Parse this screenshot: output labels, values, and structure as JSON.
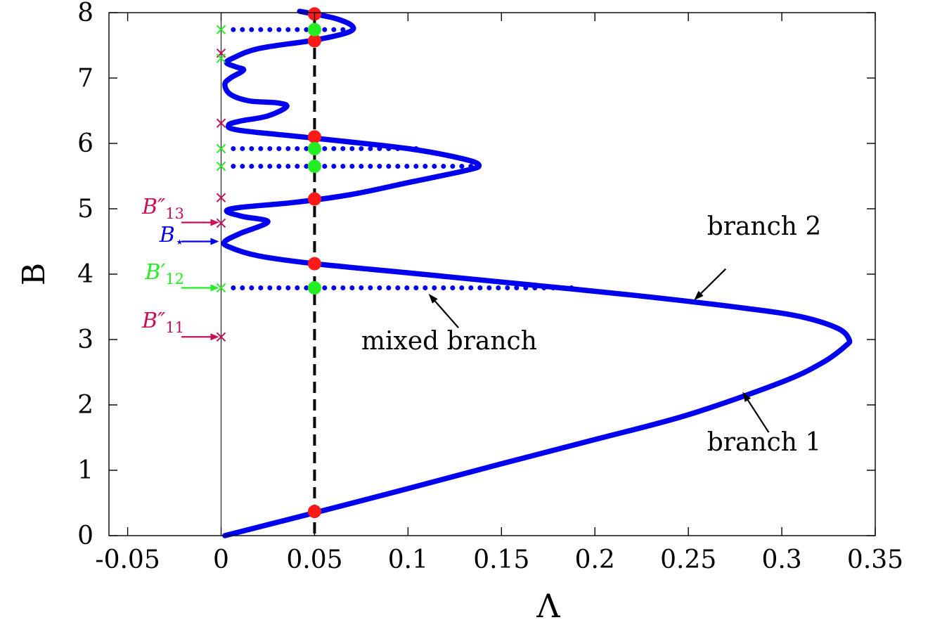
{
  "chart_data": {
    "type": "line",
    "xlabel": "Λ",
    "ylabel": "B",
    "xlim": [
      -0.06,
      0.35
    ],
    "ylim": [
      0,
      8
    ],
    "xticks": [
      {
        "v": -0.05,
        "label": "-0.05"
      },
      {
        "v": 0,
        "label": "0"
      },
      {
        "v": 0.05,
        "label": "0.05"
      },
      {
        "v": 0.1,
        "label": "0.1"
      },
      {
        "v": 0.15,
        "label": "0.15"
      },
      {
        "v": 0.2,
        "label": "0.2"
      },
      {
        "v": 0.25,
        "label": "0.25"
      },
      {
        "v": 0.3,
        "label": "0.3"
      },
      {
        "v": 0.35,
        "label": "0.35"
      }
    ],
    "yticks": [
      {
        "v": 0,
        "label": "0"
      },
      {
        "v": 1,
        "label": "1"
      },
      {
        "v": 2,
        "label": "2"
      },
      {
        "v": 3,
        "label": "3"
      },
      {
        "v": 4,
        "label": "4"
      },
      {
        "v": 5,
        "label": "5"
      },
      {
        "v": 6,
        "label": "6"
      },
      {
        "v": 7,
        "label": "7"
      },
      {
        "v": 8,
        "label": "8"
      }
    ],
    "grid": false,
    "main_curve": {
      "color": "#0000ee",
      "points": [
        [
          0.002,
          0.0
        ],
        [
          0.05,
          0.35
        ],
        [
          0.1,
          0.72
        ],
        [
          0.15,
          1.1
        ],
        [
          0.2,
          1.47
        ],
        [
          0.25,
          1.85
        ],
        [
          0.3,
          2.35
        ],
        [
          0.322,
          2.65
        ],
        [
          0.334,
          2.9
        ],
        [
          0.336,
          3.0
        ],
        [
          0.33,
          3.17
        ],
        [
          0.31,
          3.35
        ],
        [
          0.28,
          3.48
        ],
        [
          0.22,
          3.68
        ],
        [
          0.15,
          3.88
        ],
        [
          0.1,
          4.02
        ],
        [
          0.05,
          4.16
        ],
        [
          0.02,
          4.28
        ],
        [
          0.004,
          4.42
        ],
        [
          0.002,
          4.5
        ],
        [
          0.01,
          4.62
        ],
        [
          0.025,
          4.8
        ],
        [
          0.012,
          4.88
        ],
        [
          0.003,
          4.96
        ],
        [
          0.01,
          5.02
        ],
        [
          0.04,
          5.1
        ],
        [
          0.07,
          5.22
        ],
        [
          0.1,
          5.4
        ],
        [
          0.13,
          5.58
        ],
        [
          0.138,
          5.66
        ],
        [
          0.13,
          5.76
        ],
        [
          0.1,
          5.92
        ],
        [
          0.05,
          6.08
        ],
        [
          0.01,
          6.2
        ],
        [
          0.004,
          6.28
        ],
        [
          0.01,
          6.34
        ],
        [
          0.025,
          6.42
        ],
        [
          0.035,
          6.56
        ],
        [
          0.03,
          6.62
        ],
        [
          0.015,
          6.65
        ],
        [
          0.005,
          6.75
        ],
        [
          0.002,
          6.9
        ],
        [
          0.005,
          7.0
        ],
        [
          0.012,
          7.12
        ],
        [
          0.008,
          7.17
        ],
        [
          0.003,
          7.23
        ],
        [
          0.006,
          7.3
        ],
        [
          0.02,
          7.45
        ],
        [
          0.05,
          7.58
        ],
        [
          0.068,
          7.7
        ],
        [
          0.07,
          7.8
        ],
        [
          0.06,
          7.92
        ],
        [
          0.042,
          8.02
        ]
      ]
    },
    "mixed_branches": [
      {
        "y": 3.79,
        "x_start": 0.002,
        "x_end": 0.19
      },
      {
        "y": 5.65,
        "x_start": 0.002,
        "x_end": 0.137
      },
      {
        "y": 5.92,
        "x_start": 0.002,
        "x_end": 0.105
      },
      {
        "y": 7.74,
        "x_start": 0.002,
        "x_end": 0.066
      }
    ],
    "vertical_line": {
      "x": 0.05,
      "color": "#000000",
      "style": "dashed"
    },
    "red_points": {
      "x": 0.05,
      "color": "#ff1a1a",
      "y": [
        0.37,
        4.16,
        5.15,
        6.1,
        7.57,
        7.98
      ]
    },
    "green_points": {
      "x": 0.05,
      "color": "#22ee22",
      "y": [
        3.79,
        5.65,
        5.92,
        7.74
      ]
    },
    "x_markers_purple": {
      "x": 0.0,
      "color": "#c8105a",
      "y": [
        3.04,
        4.78,
        5.17,
        6.31,
        7.38
      ]
    },
    "x_markers_green": {
      "x": 0.0,
      "color": "#22ee22",
      "y": [
        3.79,
        5.65,
        5.92,
        7.3,
        7.74
      ]
    },
    "side_labels": [
      {
        "main": "B",
        "prime": "″",
        "sub": "13",
        "y": 4.79,
        "color": "#c8105a",
        "arrow_y": 4.79,
        "label_y": 5.03
      },
      {
        "main": "B",
        "prime": "",
        "sub": "⋆",
        "y": 4.5,
        "color": "#0000ee",
        "arrow_y": 4.5,
        "label_y": 4.6
      },
      {
        "main": "B",
        "prime": "′",
        "sub": "12",
        "y": 3.79,
        "color": "#22ee22",
        "arrow_y": 3.79,
        "label_y": 4.03
      },
      {
        "main": "B",
        "prime": "″",
        "sub": "11",
        "y": 3.04,
        "color": "#c8105a",
        "arrow_y": 3.04,
        "label_y": 3.29
      }
    ],
    "annotations": [
      {
        "text": "branch 2",
        "text_x": 0.26,
        "text_y": 4.6,
        "tail_x": 0.27,
        "tail_y": 4.08,
        "head_x": 0.253,
        "head_y": 3.6
      },
      {
        "text": "mixed branch",
        "text_x": 0.075,
        "text_y": 2.85,
        "tail_x": 0.127,
        "tail_y": 3.18,
        "head_x": 0.111,
        "head_y": 3.7
      },
      {
        "text": "branch 1",
        "text_x": 0.26,
        "text_y": 1.3,
        "tail_x": 0.293,
        "tail_y": 1.58,
        "head_x": 0.279,
        "head_y": 2.2
      }
    ]
  }
}
